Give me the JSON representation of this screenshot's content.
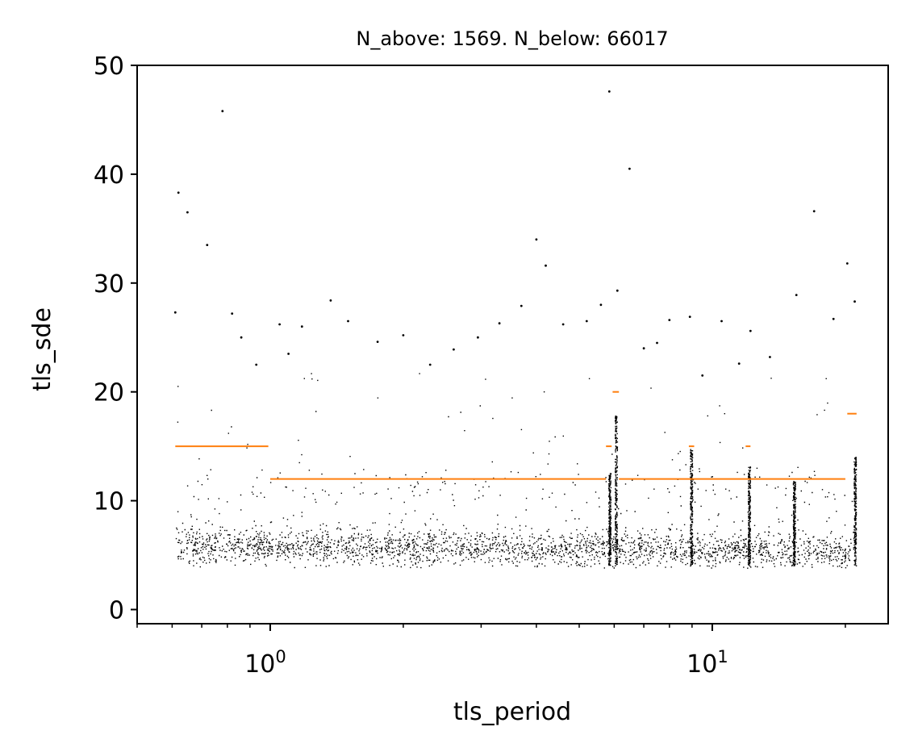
{
  "chart_data": {
    "type": "scatter",
    "title": "N_above: 1569. N_below: 66017",
    "xlabel": "tls_period",
    "ylabel": "tls_sde",
    "xscale": "log",
    "xlim": [
      0.5,
      25
    ],
    "ylim": [
      -1.3,
      50
    ],
    "x_ticks": [
      {
        "value": 1,
        "base": "10",
        "exp": "0"
      },
      {
        "value": 10,
        "base": "10",
        "exp": "1"
      }
    ],
    "y_ticks": [
      {
        "value": 0,
        "label": "0"
      },
      {
        "value": 10,
        "label": "10"
      },
      {
        "value": 20,
        "label": "20"
      },
      {
        "value": 30,
        "label": "30"
      },
      {
        "value": 40,
        "label": "40"
      },
      {
        "value": 50,
        "label": "50"
      }
    ],
    "grid": false,
    "legend": "none",
    "colors": {
      "points": "#000000",
      "threshold": "#ff7f0e"
    },
    "series": [
      {
        "kind": "points",
        "x": [
          0.61,
          0.62,
          0.65,
          0.72,
          0.78,
          0.82,
          0.86,
          0.93,
          1.05,
          1.1,
          1.18,
          1.37,
          1.5,
          1.75,
          2.0,
          2.3,
          2.6,
          2.95,
          3.3,
          3.7,
          4.0,
          4.2,
          4.6,
          5.2,
          5.6,
          5.85,
          6.1,
          6.5,
          7.0,
          7.5,
          8.0,
          8.9,
          9.5,
          10.5,
          11.5,
          12.2,
          13.5,
          15.5,
          17.0,
          18.8,
          20.2,
          21.0
        ],
        "y": [
          27.3,
          38.3,
          36.5,
          33.5,
          45.8,
          27.2,
          25.0,
          22.5,
          26.2,
          23.5,
          26.0,
          28.4,
          26.5,
          24.6,
          25.2,
          22.5,
          23.9,
          25.0,
          26.3,
          27.9,
          34.0,
          31.6,
          26.2,
          26.5,
          28.0,
          47.6,
          29.3,
          40.5,
          24.0,
          24.5,
          26.6,
          26.9,
          21.5,
          26.5,
          22.6,
          25.6,
          23.2,
          28.9,
          36.6,
          26.7,
          31.8,
          28.3
        ]
      },
      {
        "kind": "thresholds",
        "segments": [
          {
            "x0": 0.61,
            "x1": 0.99,
            "y": 15
          },
          {
            "x0": 1.0,
            "x1": 5.75,
            "y": 12
          },
          {
            "x0": 5.75,
            "x1": 5.92,
            "y": 15
          },
          {
            "x0": 5.95,
            "x1": 6.15,
            "y": 20
          },
          {
            "x0": 6.15,
            "x1": 20.0,
            "y": 12
          },
          {
            "x0": 8.85,
            "x1": 9.1,
            "y": 15
          },
          {
            "x0": 11.9,
            "x1": 12.2,
            "y": 15
          },
          {
            "x0": 20.2,
            "x1": 21.2,
            "y": 18
          }
        ]
      }
    ]
  }
}
